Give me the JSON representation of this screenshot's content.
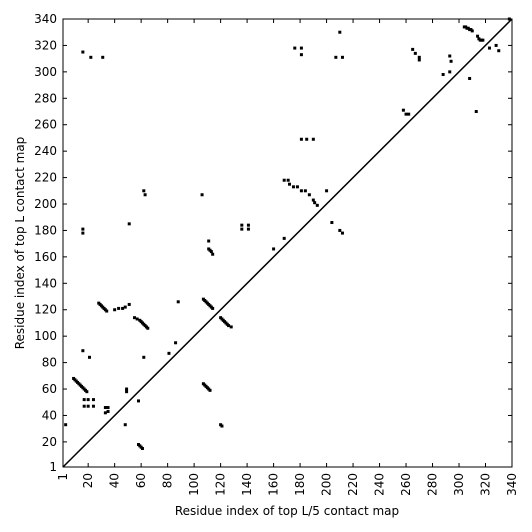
{
  "chart_data": {
    "type": "scatter",
    "xlabel": "Residue index of top L/5 contact map",
    "ylabel": "Residue index of top L contact map",
    "color": "#000000",
    "diagonal": true,
    "xlim": [
      1,
      340
    ],
    "ylim": [
      1,
      340
    ],
    "xticks": [
      1,
      20,
      40,
      60,
      80,
      100,
      120,
      140,
      160,
      180,
      200,
      220,
      240,
      260,
      280,
      300,
      320,
      340
    ],
    "yticks": [
      1,
      20,
      40,
      60,
      80,
      100,
      120,
      140,
      160,
      180,
      200,
      220,
      240,
      260,
      280,
      300,
      320,
      340
    ],
    "x": [
      9,
      10,
      11,
      12,
      13,
      14,
      15,
      16,
      17,
      18,
      19,
      17,
      17,
      20,
      20,
      24,
      24,
      21,
      28,
      29,
      30,
      31,
      32,
      33,
      34,
      33,
      33,
      35,
      35,
      40,
      43,
      46,
      48,
      55,
      57,
      59,
      60,
      61,
      62,
      63,
      64,
      65,
      58,
      59,
      60,
      61,
      49,
      49,
      107,
      108,
      109,
      110,
      111,
      112,
      113,
      114,
      120,
      121,
      122,
      123,
      124,
      125,
      126,
      128,
      107,
      108,
      109,
      110,
      111,
      112,
      111,
      112,
      113,
      114,
      120,
      121,
      136,
      141,
      136,
      141,
      181,
      185,
      190,
      258,
      260,
      262,
      304,
      305,
      306,
      307,
      308,
      309,
      310,
      314,
      315,
      316,
      317,
      318,
      323,
      168,
      171,
      172,
      175,
      178,
      181,
      184,
      187,
      190,
      191,
      193,
      176,
      181,
      181,
      265,
      267,
      270,
      270,
      293,
      294,
      293,
      288,
      328,
      330,
      16,
      22,
      31,
      16,
      16,
      51,
      62,
      63,
      106,
      111,
      88,
      86,
      81,
      16,
      3,
      51,
      62,
      48,
      58,
      160,
      168,
      204,
      210,
      212,
      200,
      207,
      212,
      210,
      313,
      308,
      338
    ],
    "values": [
      68,
      67,
      66,
      65,
      64,
      63,
      62,
      61,
      60,
      59,
      58,
      52,
      47,
      52,
      47,
      52,
      47,
      84,
      125,
      124,
      123,
      122,
      121,
      120,
      119,
      46,
      42,
      46,
      43,
      120,
      121,
      121,
      122,
      114,
      113,
      112,
      111,
      110,
      109,
      108,
      107,
      106,
      18,
      17,
      16,
      15,
      60,
      58,
      128,
      127,
      126,
      125,
      124,
      123,
      122,
      121,
      114,
      113,
      112,
      111,
      110,
      109,
      108,
      107,
      64,
      63,
      62,
      61,
      60,
      59,
      166,
      165,
      164,
      162,
      33,
      32,
      184,
      184,
      181,
      181,
      249,
      249,
      249,
      271,
      268,
      268,
      334,
      334,
      333,
      333,
      332,
      332,
      331,
      327,
      325,
      324,
      324,
      324,
      318,
      218,
      218,
      215,
      213,
      213,
      210,
      210,
      207,
      203,
      201,
      199,
      318,
      318,
      313,
      317,
      314,
      311,
      309,
      312,
      308,
      300,
      298,
      320,
      316,
      315,
      311,
      311,
      181,
      178,
      185,
      210,
      207,
      207,
      172,
      126,
      95,
      87,
      89,
      33,
      124,
      84,
      33,
      51,
      166,
      174,
      186,
      180,
      178,
      210,
      311,
      311,
      330,
      270,
      295,
      340
    ]
  }
}
